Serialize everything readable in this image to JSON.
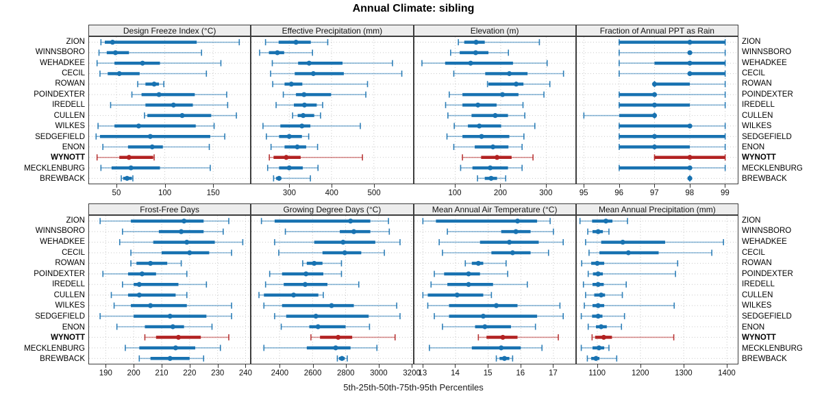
{
  "chart_data": {
    "type": "dotplot-trellis",
    "title": "Annual Climate: sibling",
    "caption": "5th-25th-50th-75th-95th Percentiles",
    "percentile_labels": [
      "5th",
      "25th",
      "50th",
      "75th",
      "95th"
    ],
    "legend_position": "none",
    "grid": "dotted",
    "sites": [
      "ZION",
      "WINNSBORO",
      "WEHADKEE",
      "CECIL",
      "ROWAN",
      "POINDEXTER",
      "IREDELL",
      "CULLEN",
      "WILKES",
      "SEDGEFIELD",
      "ENON",
      "WYNOTT",
      "MECKLENBURG",
      "BREWBACK"
    ],
    "highlight_site": "WYNOTT",
    "colors": {
      "series_blue": "#1872b1",
      "highlight_red": "#b22222",
      "strip_bg": "#ededed",
      "panel_border": "#3c3c3c",
      "grid_gray": "#c8c8c8"
    },
    "panels": [
      {
        "title": "Design Freeze Index (°C)",
        "grid_pos": [
          0,
          0
        ],
        "ticks": [
          50,
          100,
          150
        ],
        "xlim": [
          21,
          189
        ],
        "values": [
          [
            34,
            38,
            46,
            133,
            177
          ],
          [
            32,
            40,
            49,
            63,
            138
          ],
          [
            30,
            48,
            77,
            95,
            158
          ],
          [
            33,
            41,
            53,
            74,
            143
          ],
          [
            72,
            80,
            89,
            94,
            99
          ],
          [
            66,
            76,
            94,
            131,
            164
          ],
          [
            44,
            80,
            109,
            129,
            165
          ],
          [
            79,
            82,
            118,
            148,
            174
          ],
          [
            31,
            48,
            73,
            132,
            151
          ],
          [
            29,
            33,
            85,
            147,
            162
          ],
          [
            36,
            62,
            87,
            98,
            146
          ],
          [
            30,
            53,
            63,
            88,
            89
          ],
          [
            34,
            45,
            65,
            95,
            147
          ],
          [
            55,
            57,
            61,
            66,
            67
          ]
        ]
      },
      {
        "title": "Effective Precipitation (mm)",
        "grid_pos": [
          0,
          1
        ],
        "ticks": [
          300,
          400,
          500
        ],
        "xlim": [
          209,
          593
        ],
        "values": [
          [
            244,
            275,
            316,
            351,
            391
          ],
          [
            230,
            252,
            272,
            288,
            355
          ],
          [
            260,
            321,
            347,
            426,
            544
          ],
          [
            256,
            313,
            357,
            429,
            566
          ],
          [
            261,
            289,
            305,
            331,
            485
          ],
          [
            286,
            316,
            335,
            399,
            481
          ],
          [
            269,
            311,
            336,
            365,
            379
          ],
          [
            308,
            320,
            333,
            359,
            374
          ],
          [
            238,
            279,
            330,
            350,
            468
          ],
          [
            246,
            276,
            300,
            330,
            346
          ],
          [
            257,
            289,
            319,
            340,
            367
          ],
          [
            253,
            263,
            293,
            327,
            473
          ],
          [
            249,
            276,
            300,
            332,
            368
          ],
          [
            263,
            269,
            276,
            281,
            350
          ]
        ]
      },
      {
        "title": "Elevation (m)",
        "grid_pos": [
          0,
          2
        ],
        "ticks": [
          100,
          200,
          300
        ],
        "xlim": [
          9,
          366
        ],
        "values": [
          [
            107,
            120,
            146,
            165,
            285
          ],
          [
            90,
            110,
            145,
            173,
            217
          ],
          [
            27,
            78,
            134,
            227,
            302
          ],
          [
            97,
            166,
            219,
            259,
            338
          ],
          [
            171,
            173,
            234,
            250,
            308
          ],
          [
            87,
            116,
            204,
            239,
            295
          ],
          [
            79,
            116,
            150,
            191,
            249
          ],
          [
            84,
            136,
            188,
            216,
            253
          ],
          [
            98,
            128,
            153,
            201,
            275
          ],
          [
            82,
            116,
            158,
            219,
            251
          ],
          [
            97,
            143,
            183,
            217,
            247
          ],
          [
            116,
            157,
            192,
            224,
            271
          ],
          [
            112,
            138,
            177,
            216,
            247
          ],
          [
            149,
            165,
            179,
            192,
            211
          ]
        ]
      },
      {
        "title": "Fraction of Annual PPT as Rain",
        "grid_pos": [
          0,
          3
        ],
        "ticks": [
          95,
          96,
          97,
          98,
          99
        ],
        "xlim": [
          94.78,
          99.38
        ],
        "values": [
          [
            96,
            96,
            98,
            99,
            99
          ],
          [
            96,
            98,
            98,
            98,
            99
          ],
          [
            96,
            97,
            98,
            99,
            99
          ],
          [
            96,
            98,
            98,
            99,
            99
          ],
          [
            97,
            97,
            97,
            98,
            99
          ],
          [
            96,
            96,
            97,
            97,
            99
          ],
          [
            96,
            96,
            97,
            98,
            99
          ],
          [
            95,
            96,
            97,
            97,
            97
          ],
          [
            96,
            96,
            98,
            98,
            99
          ],
          [
            96,
            96,
            97,
            99,
            99
          ],
          [
            96,
            96,
            97,
            98,
            99
          ],
          [
            97,
            97,
            98,
            99,
            99
          ],
          [
            96,
            96,
            98,
            98,
            99
          ],
          [
            98,
            98,
            98,
            98,
            98
          ]
        ]
      },
      {
        "title": "Frost-Free Days",
        "grid_pos": [
          1,
          0
        ],
        "ticks": [
          190,
          200,
          210,
          220,
          230,
          240
        ],
        "xlim": [
          183.8,
          241.9
        ],
        "values": [
          [
            188,
            199,
            218,
            225,
            234
          ],
          [
            196,
            209,
            217,
            225,
            232
          ],
          [
            195,
            207,
            219,
            229,
            239
          ],
          [
            199,
            210,
            220,
            227,
            235
          ],
          [
            199,
            201,
            206,
            212,
            217
          ],
          [
            189,
            198,
            203,
            208,
            219
          ],
          [
            196,
            200,
            202,
            216,
            226
          ],
          [
            192,
            198,
            202,
            215,
            219
          ],
          [
            193,
            199,
            206,
            219,
            235
          ],
          [
            188,
            200,
            213,
            226,
            235
          ],
          [
            194,
            204,
            214,
            218,
            228
          ],
          [
            204,
            208,
            216,
            224,
            234
          ],
          [
            197,
            202,
            215,
            222,
            231
          ],
          [
            202,
            206,
            213,
            220,
            225
          ]
        ]
      },
      {
        "title": "Growing Degree Days (°C)",
        "grid_pos": [
          1,
          1
        ],
        "ticks": [
          2400,
          2600,
          2800,
          3000,
          3200
        ],
        "xlim": [
          2225,
          3210
        ],
        "values": [
          [
            2290,
            2370,
            2830,
            2950,
            3060
          ],
          [
            2435,
            2765,
            2850,
            2950,
            3065
          ],
          [
            2370,
            2610,
            2785,
            2980,
            3130
          ],
          [
            2395,
            2660,
            2795,
            2895,
            3035
          ],
          [
            2540,
            2565,
            2610,
            2660,
            2775
          ],
          [
            2340,
            2415,
            2560,
            2665,
            2775
          ],
          [
            2315,
            2425,
            2555,
            2690,
            2880
          ],
          [
            2275,
            2305,
            2485,
            2635,
            2665
          ],
          [
            2305,
            2415,
            2715,
            2850,
            3110
          ],
          [
            2370,
            2440,
            2620,
            2940,
            3130
          ],
          [
            2410,
            2580,
            2633,
            2800,
            2945
          ],
          [
            2590,
            2645,
            2755,
            2840,
            3100
          ],
          [
            2305,
            2565,
            2740,
            2830,
            2990
          ],
          [
            2750,
            2760,
            2778,
            2795,
            2810
          ]
        ]
      },
      {
        "title": "Mean Annual Air Temperature (°C)",
        "grid_pos": [
          1,
          2
        ],
        "ticks": [
          13,
          14,
          15,
          16,
          17
        ],
        "xlim": [
          12.72,
          17.7
        ],
        "values": [
          [
            13.0,
            13.4,
            15.9,
            16.5,
            16.9
          ],
          [
            13.75,
            15.4,
            15.85,
            16.3,
            17.0
          ],
          [
            13.5,
            14.75,
            15.65,
            16.55,
            17.3
          ],
          [
            13.6,
            15.1,
            15.75,
            16.3,
            16.85
          ],
          [
            14.3,
            14.5,
            14.7,
            14.85,
            15.55
          ],
          [
            13.35,
            13.65,
            14.4,
            14.75,
            15.6
          ],
          [
            13.25,
            13.75,
            14.4,
            15.15,
            16.2
          ],
          [
            13.0,
            13.15,
            14.05,
            14.85,
            15.1
          ],
          [
            13.15,
            13.8,
            15.25,
            15.9,
            17.2
          ],
          [
            13.35,
            13.8,
            14.85,
            16.5,
            17.3
          ],
          [
            13.6,
            14.6,
            14.9,
            15.7,
            16.45
          ],
          [
            14.7,
            14.95,
            15.45,
            15.9,
            17.15
          ],
          [
            13.2,
            14.5,
            15.4,
            16.0,
            16.65
          ],
          [
            15.25,
            15.35,
            15.5,
            15.65,
            15.75
          ]
        ]
      },
      {
        "title": "Mean Annual Precipitation (mm)",
        "grid_pos": [
          1,
          3
        ],
        "ticks": [
          1100,
          1200,
          1300,
          1400
        ],
        "xlim": [
          1051,
          1427
        ],
        "values": [
          [
            1060,
            1088,
            1120,
            1135,
            1170
          ],
          [
            1078,
            1089,
            1102,
            1113,
            1127
          ],
          [
            1073,
            1109,
            1159,
            1257,
            1392
          ],
          [
            1081,
            1105,
            1172,
            1242,
            1365
          ],
          [
            1064,
            1086,
            1100,
            1116,
            1286
          ],
          [
            1079,
            1090,
            1102,
            1113,
            1281
          ],
          [
            1068,
            1089,
            1102,
            1115,
            1167
          ],
          [
            1073,
            1093,
            1109,
            1118,
            1158
          ],
          [
            1070,
            1089,
            1102,
            1116,
            1278
          ],
          [
            1063,
            1088,
            1102,
            1112,
            1163
          ],
          [
            1079,
            1097,
            1109,
            1122,
            1156
          ],
          [
            1088,
            1095,
            1115,
            1134,
            1277
          ],
          [
            1063,
            1089,
            1104,
            1116,
            1127
          ],
          [
            1077,
            1086,
            1097,
            1105,
            1145
          ]
        ]
      }
    ]
  }
}
